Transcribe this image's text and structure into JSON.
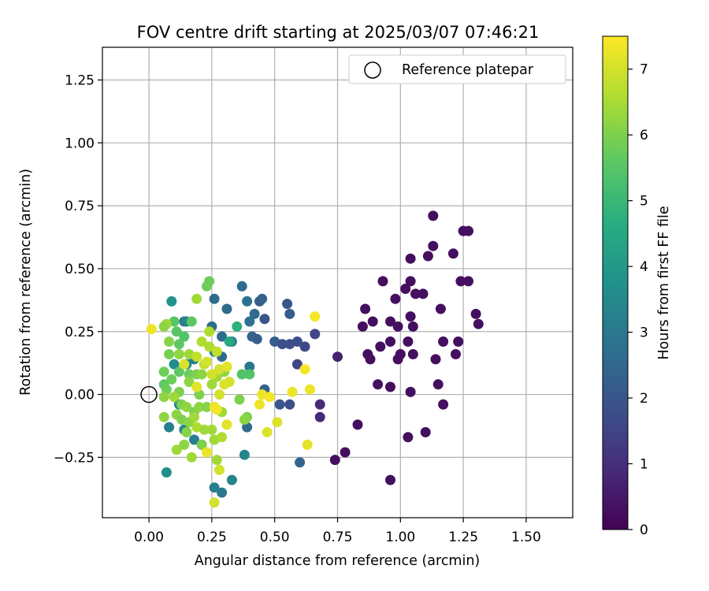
{
  "chart_data": {
    "type": "scatter",
    "title": "FOV centre drift starting at 2025/03/07 07:46:21",
    "xlabel": "Angular distance from reference (arcmin)",
    "ylabel": "Rotation from reference (arcmin)",
    "xlim": [
      -0.185,
      1.685
    ],
    "ylim": [
      -0.49,
      1.38
    ],
    "xticks": [
      "0.00",
      "0.25",
      "0.50",
      "0.75",
      "1.00",
      "1.25",
      "1.50"
    ],
    "xtick_values": [
      0.0,
      0.25,
      0.5,
      0.75,
      1.0,
      1.25,
      1.5
    ],
    "yticks": [
      "−0.25",
      "0.00",
      "0.25",
      "0.50",
      "0.75",
      "1.00",
      "1.25"
    ],
    "ytick_values": [
      -0.25,
      0.0,
      0.25,
      0.5,
      0.75,
      1.0,
      1.25
    ],
    "grid": true,
    "legend": {
      "placement": "top-right",
      "entries": [
        "Reference platepar"
      ]
    },
    "reference_point": {
      "x": 0.0,
      "y": 0.0,
      "label": "Reference platepar"
    },
    "colorbar": {
      "label": "Hours from first FF file",
      "colormap": "viridis",
      "range": [
        0,
        7.5
      ],
      "ticks": [
        "0",
        "1",
        "2",
        "3",
        "4",
        "5",
        "6",
        "7"
      ],
      "tick_values": [
        0,
        1,
        2,
        3,
        4,
        5,
        6,
        7
      ]
    },
    "points": [
      [
        1.13,
        0.71,
        0.3
      ],
      [
        1.25,
        0.65,
        0.3
      ],
      [
        1.27,
        0.65,
        0.3
      ],
      [
        1.13,
        0.59,
        0.3
      ],
      [
        1.21,
        0.56,
        0.3
      ],
      [
        1.04,
        0.54,
        0.3
      ],
      [
        1.11,
        0.55,
        0.3
      ],
      [
        0.93,
        0.45,
        0.3
      ],
      [
        1.04,
        0.45,
        0.3
      ],
      [
        1.24,
        0.45,
        0.3
      ],
      [
        1.27,
        0.45,
        0.3
      ],
      [
        1.02,
        0.42,
        0.3
      ],
      [
        0.98,
        0.38,
        0.3
      ],
      [
        1.06,
        0.4,
        0.3
      ],
      [
        1.09,
        0.4,
        0.3
      ],
      [
        0.86,
        0.34,
        0.3
      ],
      [
        1.16,
        0.34,
        0.3
      ],
      [
        1.3,
        0.32,
        0.3
      ],
      [
        1.31,
        0.28,
        0.3
      ],
      [
        0.89,
        0.29,
        0.3
      ],
      [
        0.96,
        0.29,
        0.3
      ],
      [
        1.04,
        0.31,
        0.3
      ],
      [
        1.05,
        0.27,
        0.3
      ],
      [
        0.85,
        0.27,
        0.3
      ],
      [
        0.87,
        0.16,
        0.3
      ],
      [
        0.92,
        0.19,
        0.3
      ],
      [
        0.99,
        0.27,
        0.3
      ],
      [
        1.03,
        0.21,
        0.3
      ],
      [
        1.17,
        0.21,
        0.3
      ],
      [
        1.23,
        0.21,
        0.3
      ],
      [
        0.88,
        0.14,
        0.3
      ],
      [
        0.96,
        0.21,
        0.3
      ],
      [
        0.99,
        0.14,
        0.3
      ],
      [
        1.0,
        0.16,
        0.3
      ],
      [
        1.05,
        0.16,
        0.3
      ],
      [
        1.14,
        0.14,
        0.3
      ],
      [
        1.22,
        0.16,
        0.3
      ],
      [
        0.91,
        0.04,
        0.3
      ],
      [
        0.96,
        0.03,
        0.3
      ],
      [
        1.04,
        0.01,
        0.3
      ],
      [
        1.15,
        0.04,
        0.3
      ],
      [
        1.17,
        -0.04,
        0.3
      ],
      [
        1.1,
        -0.15,
        0.3
      ],
      [
        1.03,
        -0.17,
        0.3
      ],
      [
        0.83,
        -0.12,
        0.3
      ],
      [
        0.78,
        -0.23,
        0.3
      ],
      [
        0.74,
        -0.26,
        0.3
      ],
      [
        0.96,
        -0.34,
        0.3
      ],
      [
        0.75,
        0.15,
        0.7
      ],
      [
        0.68,
        -0.04,
        0.9
      ],
      [
        0.68,
        -0.09,
        0.9
      ],
      [
        0.37,
        0.43,
        2.6
      ],
      [
        0.44,
        0.37,
        2.2
      ],
      [
        0.45,
        0.38,
        2.3
      ],
      [
        0.39,
        0.37,
        2.8
      ],
      [
        0.42,
        0.32,
        2.6
      ],
      [
        0.46,
        0.3,
        2.0
      ],
      [
        0.55,
        0.36,
        2.0
      ],
      [
        0.56,
        0.32,
        2.2
      ],
      [
        0.26,
        0.38,
        2.6
      ],
      [
        0.31,
        0.34,
        2.6
      ],
      [
        0.25,
        0.27,
        2.6
      ],
      [
        0.29,
        0.23,
        2.6
      ],
      [
        0.33,
        0.21,
        3.2
      ],
      [
        0.4,
        0.29,
        2.8
      ],
      [
        0.41,
        0.23,
        2.4
      ],
      [
        0.43,
        0.22,
        2.2
      ],
      [
        0.5,
        0.21,
        2.2
      ],
      [
        0.53,
        0.2,
        1.8
      ],
      [
        0.56,
        0.2,
        1.8
      ],
      [
        0.59,
        0.21,
        1.8
      ],
      [
        0.62,
        0.19,
        1.6
      ],
      [
        0.66,
        0.24,
        1.6
      ],
      [
        0.59,
        0.12,
        1.6
      ],
      [
        0.4,
        0.11,
        3.0
      ],
      [
        0.29,
        0.15,
        2.6
      ],
      [
        0.26,
        0.17,
        3.2
      ],
      [
        0.18,
        0.14,
        3.2
      ],
      [
        0.14,
        0.29,
        3.0
      ],
      [
        0.15,
        0.29,
        3.4
      ],
      [
        0.46,
        0.02,
        2.4
      ],
      [
        0.52,
        -0.04,
        2.0
      ],
      [
        0.56,
        -0.04,
        1.8
      ],
      [
        0.6,
        -0.27,
        2.4
      ],
      [
        0.39,
        -0.13,
        2.6
      ],
      [
        0.38,
        -0.24,
        3.4
      ],
      [
        0.29,
        -0.39,
        3.0
      ],
      [
        0.26,
        -0.37,
        3.2
      ],
      [
        0.33,
        -0.34,
        3.4
      ],
      [
        0.21,
        -0.2,
        3.2
      ],
      [
        0.18,
        -0.18,
        3.2
      ],
      [
        0.14,
        -0.14,
        3.4
      ],
      [
        0.08,
        -0.13,
        3.2
      ],
      [
        0.07,
        -0.31,
        3.7
      ],
      [
        0.12,
        -0.04,
        3.6
      ],
      [
        0.1,
        0.12,
        3.6
      ],
      [
        0.15,
        0.12,
        3.6
      ],
      [
        0.09,
        0.37,
        3.8
      ],
      [
        0.32,
        0.21,
        4.5
      ],
      [
        0.35,
        0.27,
        4.8
      ],
      [
        0.4,
        0.08,
        5.4
      ],
      [
        0.37,
        0.08,
        5.4
      ],
      [
        0.24,
        0.45,
        5.8
      ],
      [
        0.23,
        0.43,
        5.8
      ],
      [
        0.1,
        0.29,
        5.5
      ],
      [
        0.11,
        0.25,
        5.5
      ],
      [
        0.17,
        0.29,
        5.6
      ],
      [
        0.14,
        0.23,
        5.4
      ],
      [
        0.12,
        0.2,
        5.6
      ],
      [
        0.19,
        0.38,
        6.4
      ],
      [
        0.07,
        0.28,
        6.4
      ],
      [
        0.06,
        0.27,
        6.2
      ],
      [
        0.08,
        0.21,
        6.1
      ],
      [
        0.08,
        0.16,
        5.9
      ],
      [
        0.12,
        0.16,
        6.2
      ],
      [
        0.16,
        0.16,
        6.4
      ],
      [
        0.12,
        0.09,
        5.6
      ],
      [
        0.16,
        0.08,
        5.8
      ],
      [
        0.19,
        0.08,
        6.0
      ],
      [
        0.21,
        0.08,
        6.2
      ],
      [
        0.27,
        0.07,
        6.4
      ],
      [
        0.3,
        0.09,
        6.2
      ],
      [
        0.25,
        0.04,
        6.4
      ],
      [
        0.06,
        0.09,
        5.8
      ],
      [
        0.06,
        0.04,
        5.6
      ],
      [
        0.07,
        0.02,
        5.8
      ],
      [
        0.09,
        0.06,
        5.8
      ],
      [
        0.12,
        0.01,
        6.0
      ],
      [
        0.16,
        0.05,
        6.2
      ],
      [
        0.2,
        0.0,
        6.0
      ],
      [
        0.06,
        -0.01,
        6.2
      ],
      [
        0.1,
        -0.01,
        6.4
      ],
      [
        0.13,
        -0.04,
        6.0
      ],
      [
        0.15,
        -0.05,
        6.2
      ],
      [
        0.18,
        -0.07,
        6.0
      ],
      [
        0.2,
        -0.05,
        6.2
      ],
      [
        0.23,
        -0.05,
        6.1
      ],
      [
        0.11,
        -0.08,
        6.2
      ],
      [
        0.13,
        -0.1,
        6.0
      ],
      [
        0.16,
        -0.11,
        6.2
      ],
      [
        0.18,
        -0.09,
        6.4
      ],
      [
        0.19,
        -0.13,
        6.6
      ],
      [
        0.22,
        -0.14,
        6.4
      ],
      [
        0.25,
        -0.14,
        6.4
      ],
      [
        0.06,
        -0.09,
        6.2
      ],
      [
        0.11,
        -0.22,
        6.4
      ],
      [
        0.14,
        -0.2,
        6.2
      ],
      [
        0.15,
        -0.15,
        6.1
      ],
      [
        0.17,
        -0.25,
        6.4
      ],
      [
        0.21,
        -0.2,
        6.0
      ],
      [
        0.26,
        -0.18,
        6.4
      ],
      [
        0.27,
        -0.26,
        6.4
      ],
      [
        0.29,
        -0.17,
        6.6
      ],
      [
        0.29,
        -0.07,
        6.4
      ],
      [
        0.36,
        -0.02,
        6.0
      ],
      [
        0.39,
        -0.09,
        6.0
      ],
      [
        0.38,
        -0.1,
        6.2
      ],
      [
        0.21,
        0.21,
        6.6
      ],
      [
        0.19,
        0.15,
        6.8
      ],
      [
        0.22,
        0.12,
        6.8
      ],
      [
        0.23,
        0.13,
        7.0
      ],
      [
        0.24,
        0.19,
        6.6
      ],
      [
        0.24,
        0.25,
        6.6
      ],
      [
        0.27,
        0.17,
        6.8
      ],
      [
        0.25,
        0.08,
        7.0
      ],
      [
        0.28,
        0.1,
        7.0
      ],
      [
        0.31,
        0.11,
        7.2
      ],
      [
        0.32,
        0.05,
        7.0
      ],
      [
        0.28,
        0.0,
        7.0
      ],
      [
        0.3,
        0.04,
        7.1
      ],
      [
        0.01,
        0.26,
        7.3
      ],
      [
        0.14,
        0.12,
        7.1
      ],
      [
        0.19,
        0.03,
        7.2
      ],
      [
        0.23,
        -0.23,
        7.3
      ],
      [
        0.26,
        -0.43,
        7.0
      ],
      [
        0.28,
        -0.3,
        7.0
      ],
      [
        0.26,
        -0.05,
        7.3
      ],
      [
        0.27,
        -0.06,
        7.4
      ],
      [
        0.31,
        -0.12,
        7.2
      ],
      [
        0.44,
        -0.04,
        7.3
      ],
      [
        0.47,
        -0.15,
        7.1
      ],
      [
        0.45,
        0.0,
        7.3
      ],
      [
        0.48,
        -0.01,
        7.4
      ],
      [
        0.51,
        -0.11,
        7.1
      ],
      [
        0.57,
        0.01,
        7.3
      ],
      [
        0.64,
        0.02,
        7.3
      ],
      [
        0.62,
        0.1,
        7.4
      ],
      [
        0.63,
        -0.2,
        7.2
      ],
      [
        0.66,
        0.31,
        7.4
      ]
    ]
  }
}
